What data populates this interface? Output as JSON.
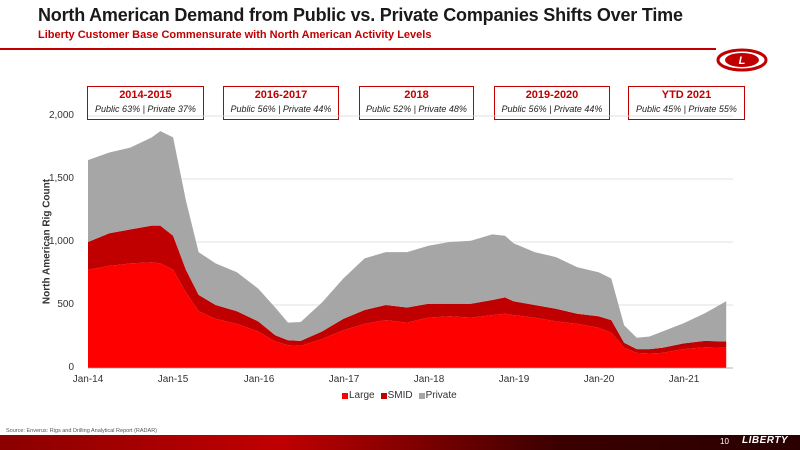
{
  "header": {
    "title": "North American Demand from Public vs. Private Companies Shifts Over Time",
    "subtitle": "Liberty Customer Base Commensurate with North American Activity Levels"
  },
  "periods": [
    {
      "label": "2014-2015",
      "split": "Public 63% | Private 37%"
    },
    {
      "label": "2016-2017",
      "split": "Public 56% | Private 44%"
    },
    {
      "label": "2018",
      "split": "Public 52% | Private 48%"
    },
    {
      "label": "2019-2020",
      "split": "Public 56% | Private 44%"
    },
    {
      "label": "YTD 2021",
      "split": "Public 45% | Private 55%"
    }
  ],
  "chart_data": {
    "type": "area",
    "stacked": true,
    "ylabel": "North American Rig Count",
    "ylim": [
      0,
      2000
    ],
    "yticks": [
      "0",
      "500",
      "1,000",
      "1,500",
      "2,000"
    ],
    "xticks": [
      "Jan-14",
      "Jan-15",
      "Jan-16",
      "Jan-17",
      "Jan-18",
      "Jan-19",
      "Jan-20",
      "Jan-21"
    ],
    "x": [
      2014.0,
      2014.25,
      2014.5,
      2014.75,
      2014.85,
      2015.0,
      2015.15,
      2015.3,
      2015.5,
      2015.75,
      2016.0,
      2016.2,
      2016.35,
      2016.5,
      2016.75,
      2017.0,
      2017.25,
      2017.5,
      2017.75,
      2018.0,
      2018.25,
      2018.5,
      2018.75,
      2018.9,
      2019.0,
      2019.25,
      2019.5,
      2019.75,
      2020.0,
      2020.15,
      2020.3,
      2020.45,
      2020.6,
      2020.75,
      2021.0,
      2021.25,
      2021.5
    ],
    "series": [
      {
        "name": "Large",
        "values": [
          780,
          810,
          830,
          840,
          830,
          780,
          600,
          450,
          390,
          350,
          290,
          210,
          180,
          175,
          230,
          300,
          350,
          380,
          360,
          400,
          410,
          400,
          420,
          430,
          420,
          400,
          370,
          350,
          320,
          280,
          160,
          120,
          115,
          120,
          150,
          165,
          160
        ]
      },
      {
        "name": "SMID",
        "values": [
          220,
          260,
          270,
          290,
          300,
          270,
          180,
          130,
          110,
          100,
          80,
          50,
          40,
          40,
          60,
          90,
          110,
          120,
          120,
          110,
          100,
          110,
          120,
          130,
          110,
          100,
          100,
          80,
          90,
          100,
          40,
          30,
          35,
          40,
          45,
          50,
          50
        ]
      },
      {
        "name": "Private",
        "values": [
          650,
          640,
          650,
          700,
          750,
          780,
          550,
          340,
          330,
          310,
          260,
          220,
          140,
          150,
          230,
          320,
          410,
          420,
          440,
          460,
          490,
          500,
          520,
          490,
          460,
          420,
          410,
          370,
          350,
          330,
          140,
          90,
          100,
          130,
          160,
          220,
          320
        ]
      }
    ],
    "colors": {
      "Large": "#ff0000",
      "SMID": "#c00000",
      "Private": "#a6a6a6"
    },
    "legend_position": "bottom"
  },
  "source": "Source: Enverus: Rigs and Drilling Analytical Report (RADAR)",
  "footer": {
    "page": "10",
    "brand": "LIBERTY"
  },
  "logo_letter": "L"
}
